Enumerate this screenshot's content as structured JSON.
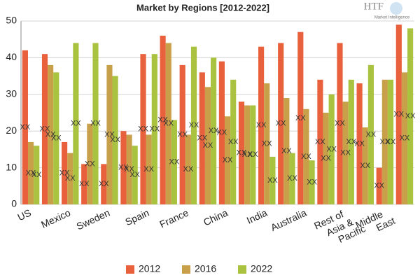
{
  "chart_data": {
    "type": "bar",
    "title": "Market by Regions [2012-2022]",
    "logo": {
      "title": "HTF",
      "subtitle": "Market Intelligence"
    },
    "categories": [
      "US",
      null,
      "Mexico",
      null,
      "Sweden",
      null,
      "Spain",
      null,
      "France",
      null,
      "China",
      null,
      "India",
      null,
      "Australia",
      null,
      "Rest of Asia & Pacific",
      null,
      "Middle East",
      null
    ],
    "series": [
      {
        "name": "2012",
        "color": "#e8603c",
        "values": [
          42,
          41,
          17,
          11,
          11,
          20,
          41,
          46,
          38,
          36,
          39,
          28,
          43,
          44,
          47,
          34,
          44,
          33,
          10,
          49
        ]
      },
      {
        "name": "2016",
        "color": "#c9a04a",
        "values": [
          17,
          38,
          14,
          22,
          38,
          19,
          19,
          44,
          19,
          32,
          24,
          27,
          33,
          29,
          26,
          25,
          28,
          21,
          34,
          36
        ]
      },
      {
        "name": "2022",
        "color": "#a9c23f",
        "values": [
          16,
          36,
          44,
          44,
          35,
          16,
          41,
          23,
          43,
          40,
          34,
          27,
          13,
          14,
          12,
          30,
          34,
          38,
          34,
          48
        ]
      }
    ],
    "data_label": "XX",
    "ylim": [
      0,
      50
    ],
    "yticks": [
      0,
      10,
      20,
      30,
      40,
      50
    ],
    "grid": true,
    "legend": "bottom"
  }
}
